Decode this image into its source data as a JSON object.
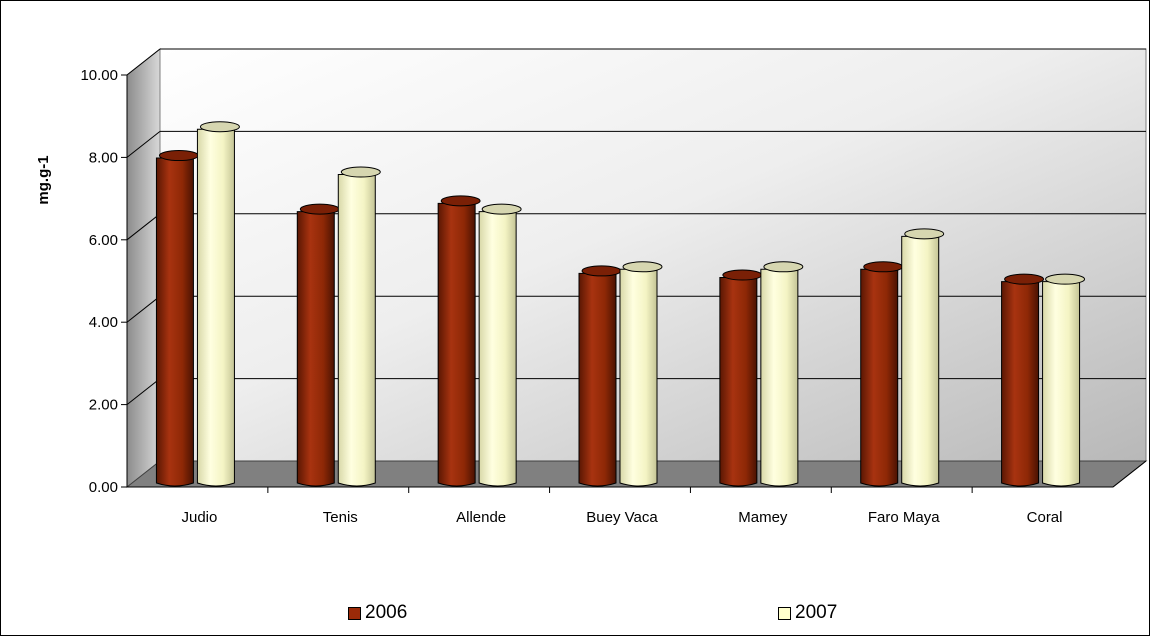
{
  "chart_data": {
    "type": "bar",
    "ylabel": "mg.g-1",
    "ylim": [
      0,
      10
    ],
    "ytick_labels": [
      "0.00",
      "2.00",
      "4.00",
      "6.00",
      "8.00",
      "10.00"
    ],
    "categories": [
      "Judio",
      "Tenis",
      "Allende",
      "Buey Vaca",
      "Mamey",
      "Faro Maya",
      "Coral"
    ],
    "series": [
      {
        "name": "2006",
        "values": [
          7.7,
          6.4,
          6.6,
          4.9,
          4.8,
          5.0,
          4.7
        ],
        "color": "#9b2a08"
      },
      {
        "name": "2007",
        "values": [
          8.4,
          7.3,
          6.4,
          5.0,
          5.0,
          5.8,
          4.7
        ],
        "color": "#ffffcc"
      }
    ],
    "grid": true,
    "legend_position": "bottom"
  }
}
